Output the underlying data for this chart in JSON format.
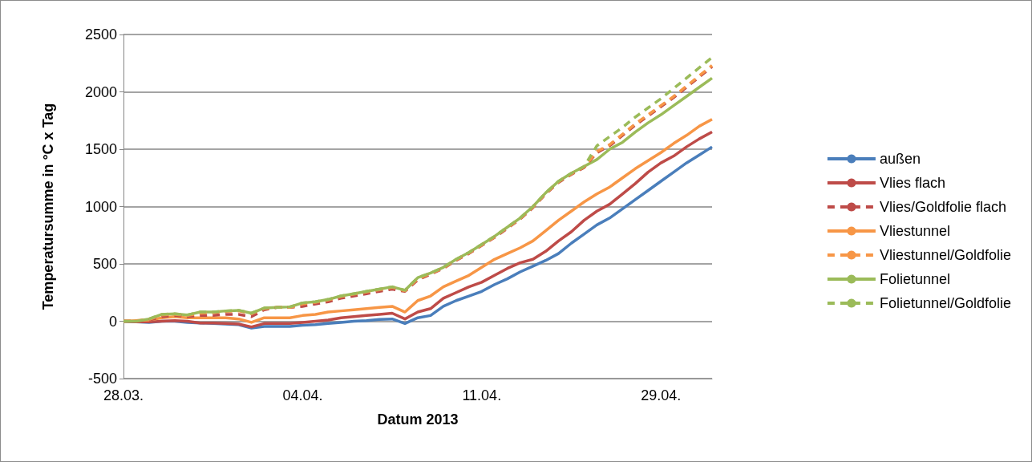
{
  "chart_data": {
    "type": "line",
    "xlabel": "Datum 2013",
    "ylabel": "Temperatursumme in °C x Tag",
    "categories": [
      "28.03.",
      null,
      null,
      null,
      null,
      null,
      null,
      null,
      null,
      null,
      null,
      null,
      null,
      null,
      "04.04.",
      null,
      null,
      null,
      null,
      null,
      null,
      null,
      null,
      null,
      null,
      null,
      null,
      null,
      "11.04.",
      null,
      null,
      null,
      null,
      null,
      null,
      null,
      null,
      null,
      null,
      null,
      null,
      null,
      "29.04.",
      null,
      null,
      null,
      null
    ],
    "series": [
      {
        "name": "außen",
        "color": "#4a7ebb",
        "line_style": "solid",
        "values": [
          0,
          -5,
          -10,
          0,
          0,
          -10,
          -15,
          -20,
          -25,
          -30,
          -60,
          -45,
          -45,
          -45,
          -35,
          -30,
          -20,
          -10,
          0,
          5,
          15,
          20,
          -20,
          30,
          50,
          130,
          180,
          220,
          260,
          320,
          370,
          430,
          480,
          530,
          590,
          680,
          760,
          840,
          900,
          980,
          1060,
          1140,
          1220,
          1300,
          1380,
          1450,
          1520
        ]
      },
      {
        "name": "Vlies flach",
        "color": "#be4b48",
        "line_style": "solid",
        "values": [
          0,
          -5,
          -5,
          0,
          5,
          0,
          -15,
          -15,
          -20,
          -25,
          -50,
          -20,
          -20,
          -20,
          -10,
          0,
          10,
          30,
          40,
          50,
          60,
          70,
          20,
          80,
          110,
          200,
          250,
          300,
          340,
          400,
          460,
          510,
          540,
          610,
          700,
          780,
          880,
          960,
          1020,
          1110,
          1200,
          1300,
          1380,
          1440,
          1520,
          1590,
          1650
        ]
      },
      {
        "name": "Vlies/Goldfolie flach",
        "color": "#be4b48",
        "line_style": "dashed",
        "values": [
          0,
          0,
          10,
          40,
          50,
          40,
          50,
          50,
          60,
          60,
          40,
          100,
          120,
          120,
          130,
          150,
          170,
          200,
          220,
          240,
          260,
          280,
          260,
          360,
          410,
          460,
          530,
          590,
          660,
          730,
          810,
          890,
          990,
          1110,
          1210,
          1280,
          1340,
          1470,
          1530,
          1620,
          1710,
          1790,
          1870,
          1950,
          2040,
          2130,
          2220
        ]
      },
      {
        "name": "Vliestunnel",
        "color": "#f79646",
        "line_style": "solid",
        "values": [
          0,
          5,
          10,
          30,
          40,
          30,
          30,
          30,
          30,
          20,
          -10,
          30,
          30,
          30,
          50,
          60,
          80,
          90,
          100,
          110,
          120,
          130,
          80,
          180,
          220,
          300,
          350,
          400,
          470,
          540,
          590,
          640,
          700,
          790,
          880,
          960,
          1040,
          1110,
          1170,
          1250,
          1330,
          1400,
          1470,
          1550,
          1620,
          1700,
          1760
        ]
      },
      {
        "name": "Vliestunnel/Goldfolie",
        "color": "#f79646",
        "line_style": "dashed",
        "values": [
          0,
          5,
          15,
          55,
          60,
          50,
          70,
          75,
          85,
          90,
          65,
          110,
          120,
          120,
          150,
          165,
          185,
          215,
          235,
          255,
          275,
          295,
          265,
          370,
          415,
          465,
          535,
          595,
          665,
          735,
          815,
          895,
          995,
          1115,
          1215,
          1285,
          1345,
          1480,
          1540,
          1630,
          1720,
          1800,
          1880,
          1960,
          2050,
          2140,
          2230
        ]
      },
      {
        "name": "Folietunnel",
        "color": "#9bbb59",
        "line_style": "solid",
        "values": [
          0,
          0,
          20,
          60,
          65,
          55,
          80,
          80,
          90,
          95,
          70,
          115,
          120,
          125,
          160,
          170,
          190,
          220,
          240,
          260,
          280,
          300,
          270,
          380,
          420,
          470,
          540,
          600,
          670,
          740,
          820,
          900,
          1000,
          1120,
          1220,
          1290,
          1350,
          1410,
          1500,
          1560,
          1650,
          1730,
          1800,
          1880,
          1960,
          2040,
          2120
        ]
      },
      {
        "name": "Folietunnel/Goldfolie",
        "color": "#9bbb59",
        "line_style": "dashed",
        "values": [
          0,
          0,
          20,
          60,
          65,
          55,
          80,
          80,
          90,
          95,
          70,
          115,
          120,
          125,
          160,
          170,
          190,
          220,
          240,
          260,
          280,
          300,
          270,
          380,
          420,
          470,
          540,
          600,
          670,
          740,
          820,
          900,
          1000,
          1120,
          1220,
          1290,
          1350,
          1530,
          1610,
          1690,
          1780,
          1860,
          1940,
          2030,
          2120,
          2210,
          2300
        ]
      }
    ],
    "ylim": [
      -500,
      2500
    ],
    "yticks": [
      -500,
      0,
      500,
      1000,
      1500,
      2000,
      2500
    ],
    "grid": "y",
    "legend": "right",
    "marker": "none"
  }
}
